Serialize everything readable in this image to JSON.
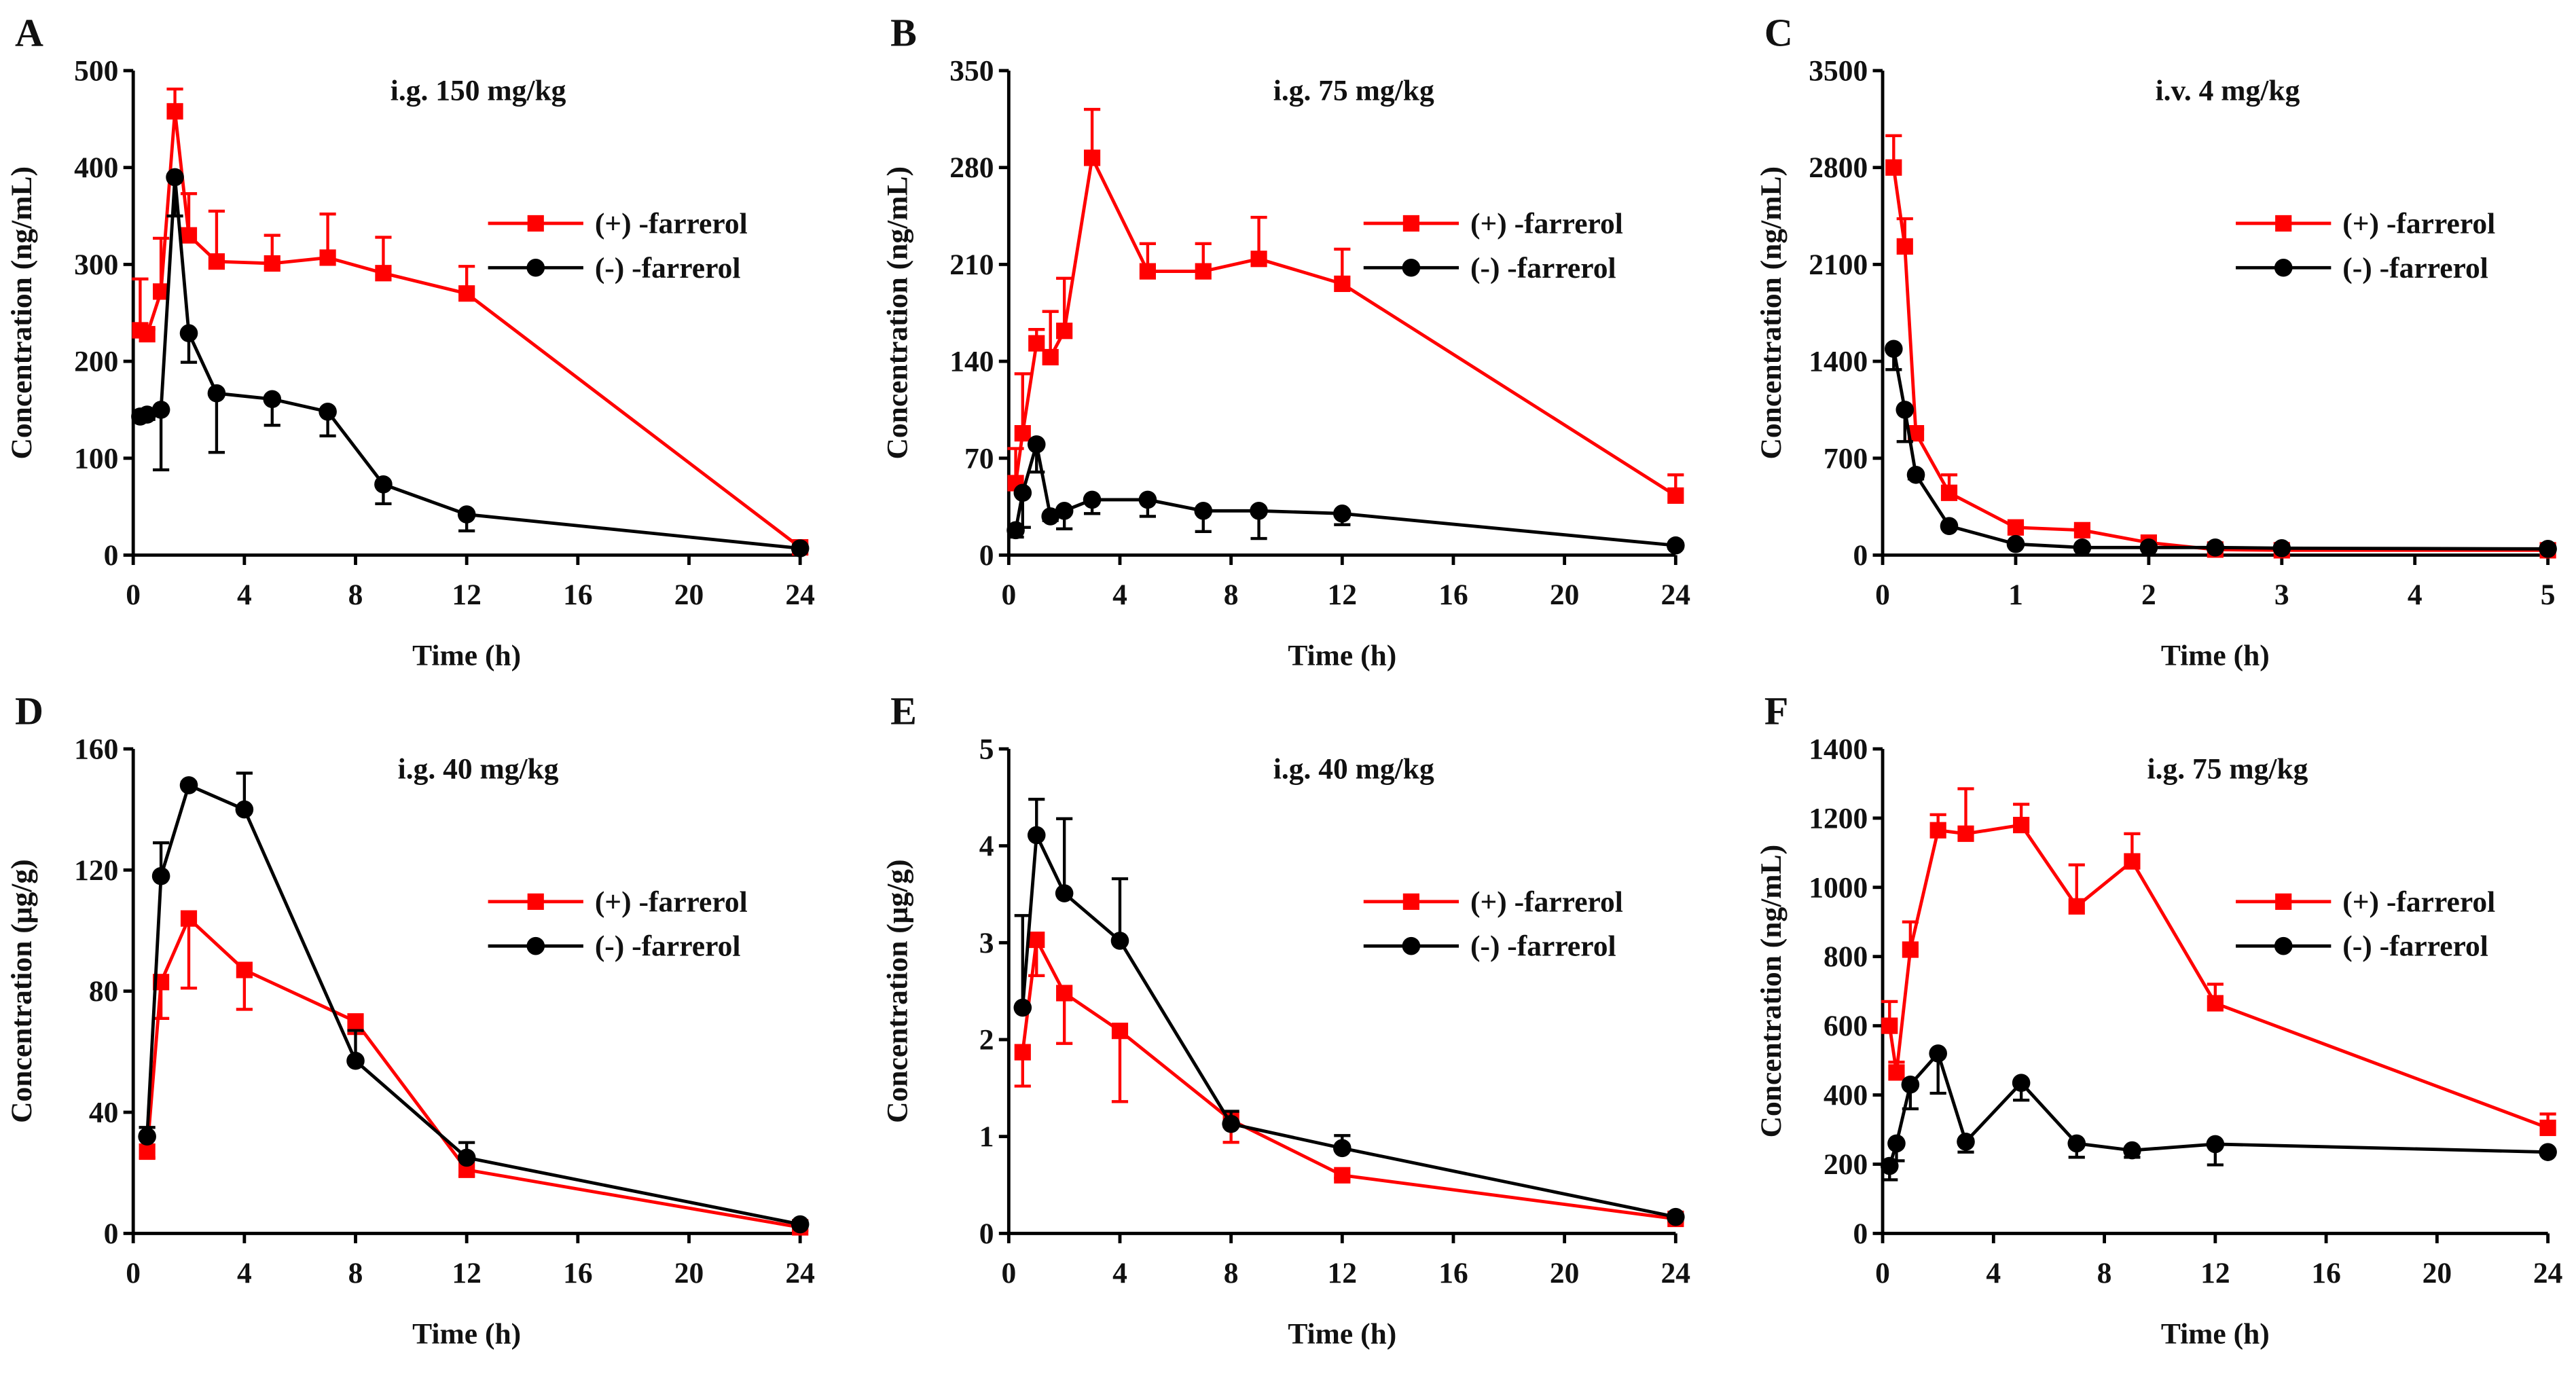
{
  "colors": {
    "plus": "#ff0000",
    "minus": "#000000",
    "axis": "#000000"
  },
  "chart_data": [
    {
      "panel": "A",
      "type": "line",
      "title": "i.g. 150 mg/kg",
      "xlabel": "Time (h)",
      "ylabel": "Concentration (ng/mL)",
      "xlim": [
        0,
        24
      ],
      "ylim": [
        0,
        500
      ],
      "xticks": [
        0,
        4,
        8,
        12,
        16,
        20,
        24
      ],
      "yticks": [
        0,
        100,
        200,
        300,
        400,
        500
      ],
      "legend": "right-middle",
      "series": [
        {
          "name": "(+) -farrerol",
          "marker": "square",
          "err_dir": "up",
          "x": [
            0.25,
            0.5,
            1,
            1.5,
            2,
            3,
            5,
            7,
            9,
            12,
            24
          ],
          "y": [
            232,
            228,
            272,
            458,
            330,
            303,
            301,
            307,
            291,
            270,
            8
          ],
          "err": [
            53,
            5,
            55,
            23,
            43,
            52,
            29,
            45,
            37,
            28,
            3
          ]
        },
        {
          "name": "(-) -farrerol",
          "marker": "circle",
          "err_dir": "down",
          "x": [
            0.25,
            0.5,
            1,
            1.5,
            2,
            3,
            5,
            7,
            9,
            12,
            24
          ],
          "y": [
            143,
            145,
            150,
            390,
            229,
            167,
            161,
            148,
            73,
            42,
            7
          ],
          "err": [
            5,
            5,
            62,
            40,
            30,
            61,
            27,
            25,
            20,
            17,
            2
          ]
        }
      ]
    },
    {
      "panel": "B",
      "type": "line",
      "title": "i.g. 75 mg/kg",
      "xlabel": "Time (h)",
      "ylabel": "Concentration (ng/mL)",
      "xlim": [
        0,
        24
      ],
      "ylim": [
        0,
        350
      ],
      "xticks": [
        0,
        4,
        8,
        12,
        16,
        20,
        24
      ],
      "yticks": [
        0,
        70,
        140,
        210,
        280,
        350
      ],
      "legend": "right-middle",
      "series": [
        {
          "name": "(+) -farrerol",
          "marker": "square",
          "err_dir": "up",
          "x": [
            0.25,
            0.5,
            1,
            1.5,
            2,
            3,
            5,
            7,
            9,
            12,
            24
          ],
          "y": [
            52,
            88,
            153,
            143,
            162,
            287,
            205,
            205,
            214,
            196,
            43
          ],
          "err": [
            25,
            43,
            10,
            33,
            38,
            35,
            20,
            20,
            30,
            25,
            15
          ]
        },
        {
          "name": "(-) -farrerol",
          "marker": "circle",
          "err_dir": "down",
          "x": [
            0.25,
            0.5,
            1,
            1.5,
            2,
            3,
            5,
            7,
            9,
            12,
            24
          ],
          "y": [
            18,
            45,
            80,
            28,
            32,
            40,
            40,
            32,
            32,
            30,
            7
          ],
          "err": [
            5,
            25,
            20,
            3,
            13,
            10,
            12,
            15,
            20,
            8,
            2
          ]
        }
      ]
    },
    {
      "panel": "C",
      "type": "line",
      "title": "i.v. 4 mg/kg",
      "xlabel": "Time (h)",
      "ylabel": "Concentration (ng/mL)",
      "xlim": [
        0,
        5
      ],
      "ylim": [
        0,
        3500
      ],
      "xticks": [
        0,
        1,
        2,
        3,
        4,
        5
      ],
      "yticks": [
        0,
        700,
        1400,
        2100,
        2800,
        3500
      ],
      "legend": "right-middle",
      "series": [
        {
          "name": "(+) -farrerol",
          "marker": "square",
          "err_dir": "up",
          "x": [
            0.083,
            0.167,
            0.25,
            0.5,
            1,
            1.5,
            2,
            2.5,
            3,
            5
          ],
          "y": [
            2800,
            2230,
            880,
            450,
            200,
            180,
            90,
            40,
            35,
            35
          ],
          "err": [
            230,
            200,
            30,
            130,
            20,
            20,
            10,
            5,
            5,
            5
          ]
        },
        {
          "name": "(-) -farrerol",
          "marker": "circle",
          "err_dir": "down",
          "x": [
            0.083,
            0.167,
            0.25,
            0.5,
            1,
            1.5,
            2,
            2.5,
            3,
            5
          ],
          "y": [
            1490,
            1050,
            580,
            210,
            80,
            55,
            55,
            55,
            50,
            45
          ],
          "err": [
            150,
            230,
            30,
            20,
            10,
            5,
            5,
            5,
            5,
            5
          ]
        }
      ]
    },
    {
      "panel": "D",
      "type": "line",
      "title": "i.g. 40 mg/kg",
      "xlabel": "Time (h)",
      "ylabel": "Concentration (μg/g)",
      "xlim": [
        0,
        24
      ],
      "ylim": [
        0,
        160
      ],
      "xticks": [
        0,
        4,
        8,
        12,
        16,
        20,
        24
      ],
      "yticks": [
        0,
        40,
        80,
        120,
        160
      ],
      "legend": "right-middle",
      "series": [
        {
          "name": "(+) -farrerol",
          "marker": "square",
          "err_dir": "down",
          "x": [
            0.5,
            1,
            2,
            4,
            8,
            12,
            24
          ],
          "y": [
            27,
            83,
            104,
            87,
            70,
            21,
            2
          ],
          "err": [
            2,
            12,
            23,
            13,
            4,
            2,
            1
          ]
        },
        {
          "name": "(-) -farrerol",
          "marker": "circle",
          "err_dir": "up",
          "x": [
            0.5,
            1,
            2,
            4,
            8,
            12,
            24
          ],
          "y": [
            32,
            118,
            148,
            140,
            57,
            25,
            3
          ],
          "err": [
            3,
            11,
            1,
            12,
            10,
            5,
            1
          ]
        }
      ]
    },
    {
      "panel": "E",
      "type": "line",
      "title": "i.g. 40 mg/kg",
      "xlabel": "Time (h)",
      "ylabel": "Concentration (μg/g)",
      "xlim": [
        0,
        24
      ],
      "ylim": [
        0,
        5
      ],
      "xticks": [
        0,
        4,
        8,
        12,
        16,
        20,
        24
      ],
      "yticks": [
        0,
        1,
        2,
        3,
        4,
        5
      ],
      "legend": "right-middle",
      "series": [
        {
          "name": "(+) -farrerol",
          "marker": "square",
          "err_dir": "down",
          "x": [
            0.5,
            1,
            2,
            4,
            8,
            12,
            24
          ],
          "y": [
            1.87,
            3.03,
            2.48,
            2.09,
            1.17,
            0.6,
            0.15
          ],
          "err": [
            0.35,
            0.37,
            0.52,
            0.73,
            0.23,
            0.03,
            0.03
          ]
        },
        {
          "name": "(-) -farrerol",
          "marker": "circle",
          "err_dir": "up",
          "x": [
            0.5,
            1,
            2,
            4,
            8,
            12,
            24
          ],
          "y": [
            2.33,
            4.11,
            3.51,
            3.02,
            1.13,
            0.88,
            0.17
          ],
          "err": [
            0.95,
            0.37,
            0.77,
            0.64,
            0.13,
            0.13,
            0.02
          ]
        }
      ]
    },
    {
      "panel": "F",
      "type": "line",
      "title": "i.g. 75 mg/kg",
      "xlabel": "Time (h)",
      "ylabel": "Concentration (ng/mL)",
      "xlim": [
        0,
        24
      ],
      "ylim": [
        0,
        1400
      ],
      "xticks": [
        0,
        4,
        8,
        12,
        16,
        20,
        24
      ],
      "yticks": [
        0,
        200,
        400,
        600,
        800,
        1000,
        1200,
        1400
      ],
      "legend": "right-middle",
      "series": [
        {
          "name": "(+) -farrerol",
          "marker": "square",
          "err_dir": "up",
          "x": [
            0.25,
            0.5,
            1,
            2,
            3,
            5,
            7,
            9,
            12,
            24
          ],
          "y": [
            600,
            465,
            820,
            1165,
            1155,
            1180,
            945,
            1075,
            665,
            305
          ],
          "err": [
            70,
            30,
            80,
            45,
            130,
            60,
            120,
            80,
            55,
            40
          ]
        },
        {
          "name": "(-) -farrerol",
          "marker": "circle",
          "err_dir": "down",
          "x": [
            0.25,
            0.5,
            1,
            2,
            3,
            5,
            7,
            9,
            12,
            24
          ],
          "y": [
            195,
            260,
            430,
            520,
            265,
            435,
            260,
            240,
            258,
            235
          ],
          "err": [
            40,
            50,
            70,
            115,
            30,
            50,
            40,
            20,
            60,
            5
          ]
        }
      ]
    }
  ]
}
